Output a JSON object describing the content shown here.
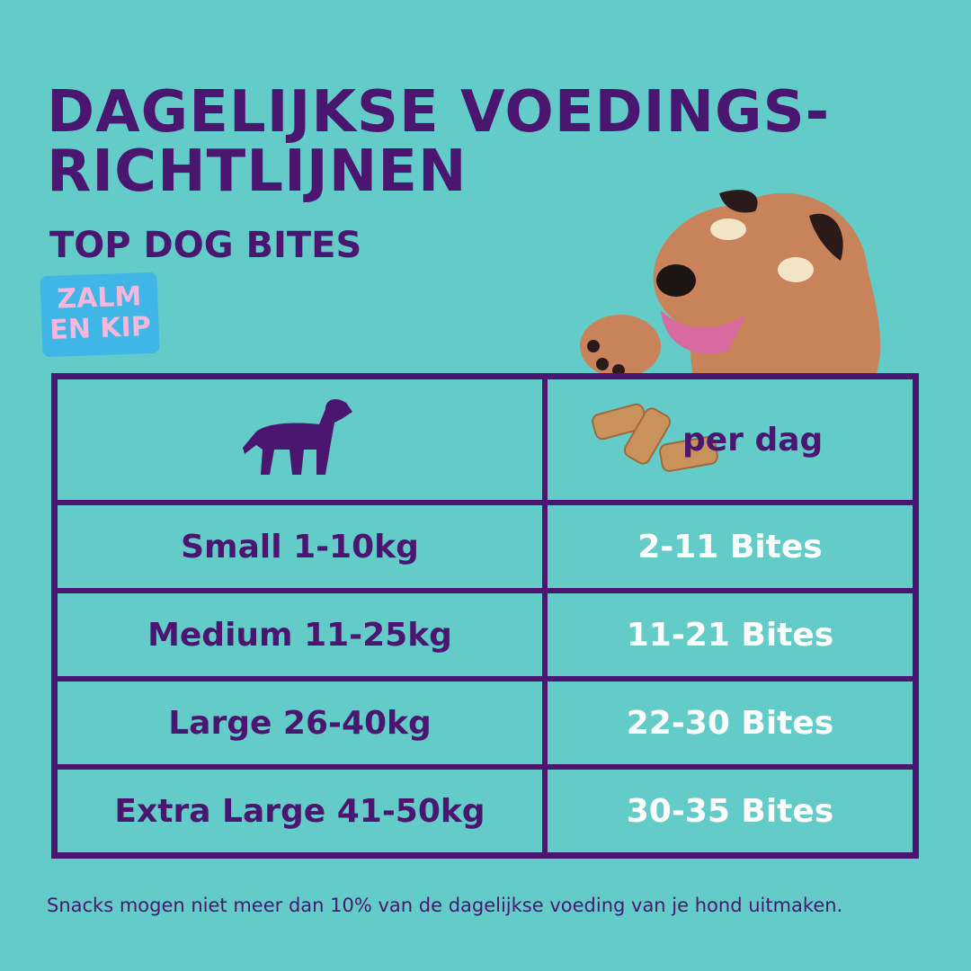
{
  "header": {
    "title_lines": [
      "DAGELIJKSE VOEDINGS-",
      "RICHTLIJNEN"
    ],
    "subtitle": "TOP DOG BITES",
    "badge_lines": [
      "ZALM",
      "EN KIP"
    ]
  },
  "table": {
    "header": [
      "per dag"
    ],
    "rows": [
      [
        "Small 1-10kg",
        "2-11 Bites"
      ],
      [
        "Medium 11-25kg",
        "11-21 Bites"
      ],
      [
        "Large 26-40kg",
        "22-30 Bites"
      ],
      [
        "Extra Large 41-50kg",
        "30-35 Bites"
      ]
    ]
  },
  "footer": "Snacks mogen niet meer dan 10% van de dagelijkse voeding van je hond uitmaken."
}
